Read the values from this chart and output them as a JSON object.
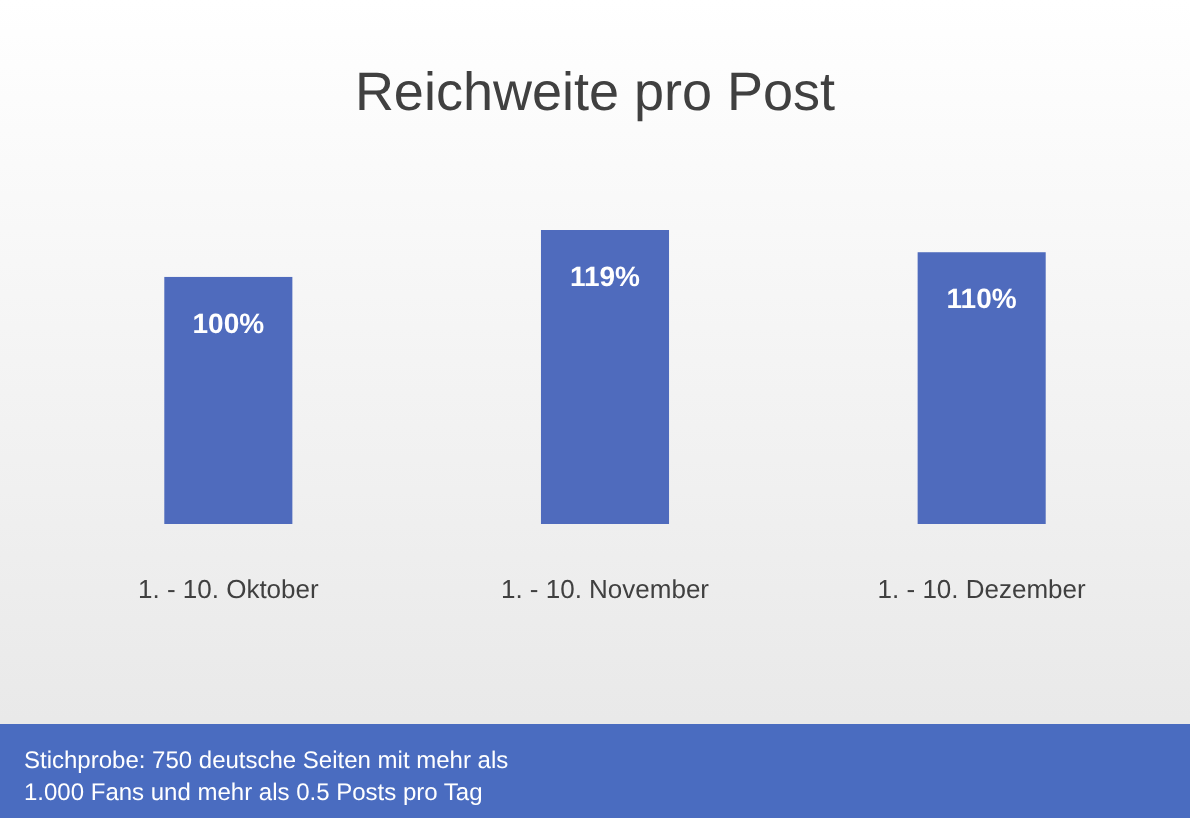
{
  "chart_data": {
    "type": "bar",
    "title": "Reichweite pro Post",
    "categories": [
      "1. - 10. Oktober",
      "1. - 10. November",
      "1. - 10. Dezember"
    ],
    "values": [
      100,
      119,
      110
    ],
    "value_labels": [
      "100%",
      "119%",
      "110%"
    ],
    "color": "#4f6bbd",
    "annotations": [
      "Stichprobe: 750 deutsche Seiten mit mehr als 1.000 Fans und mehr als 0.5 Posts pro Tag"
    ]
  }
}
